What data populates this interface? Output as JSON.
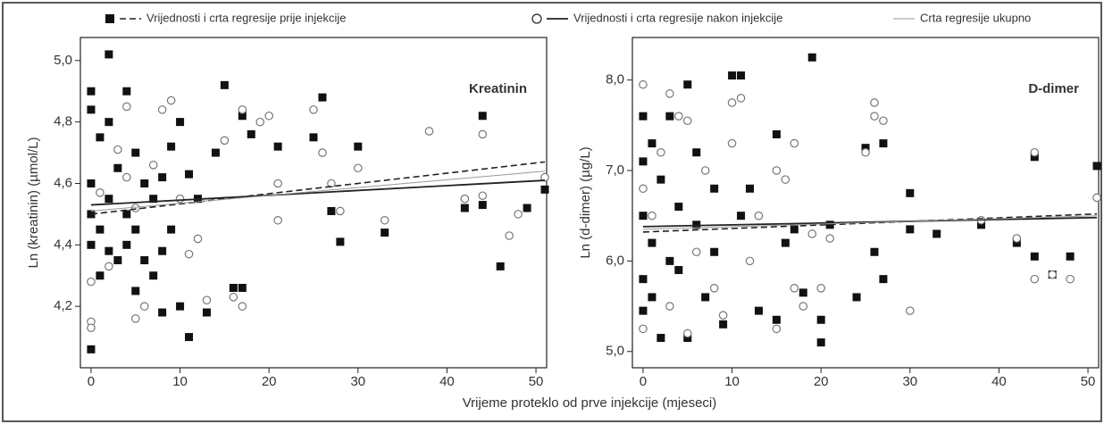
{
  "chart_data": [
    {
      "type": "scatter",
      "title": "Kreatinin",
      "ylabel": "Ln (kreatinin) (µmol/L)",
      "xlabel": "Vrijeme proteklo od prve injekcije (mjeseci)",
      "xlim": [
        -1.2,
        51.2
      ],
      "xticks": [
        0,
        10,
        20,
        30,
        40,
        50
      ],
      "ylim": [
        4.0,
        5.075
      ],
      "yticks": [
        {
          "value": 4.2,
          "label": "4,2"
        },
        {
          "value": 4.4,
          "label": "4,4"
        },
        {
          "value": 4.6,
          "label": "4,6"
        },
        {
          "value": 4.8,
          "label": "4,8"
        },
        {
          "value": 5.0,
          "label": "5,0"
        }
      ],
      "series": [
        {
          "name": "Vrijednosti i crta regresije prije injekcije",
          "marker": "square",
          "color": "#111111",
          "dash": "dashed",
          "x": [
            0,
            0,
            0,
            0,
            0,
            0,
            1,
            1,
            1,
            2,
            2,
            2,
            2,
            3,
            3,
            4,
            4,
            4,
            5,
            5,
            5,
            6,
            6,
            7,
            7,
            8,
            8,
            8,
            9,
            9,
            10,
            10,
            11,
            11,
            12,
            13,
            14,
            15,
            16,
            17,
            17,
            18,
            21,
            25,
            26,
            27,
            28,
            30,
            33,
            42,
            44,
            44,
            46,
            49,
            51
          ],
          "values": [
            4.9,
            4.84,
            4.06,
            4.4,
            4.5,
            4.6,
            4.75,
            4.3,
            4.45,
            5.02,
            4.8,
            4.38,
            4.55,
            4.65,
            4.35,
            4.9,
            4.5,
            4.4,
            4.25,
            4.7,
            4.45,
            4.6,
            4.35,
            4.55,
            4.3,
            4.18,
            4.38,
            4.62,
            4.72,
            4.45,
            4.2,
            4.8,
            4.1,
            4.63,
            4.55,
            4.18,
            4.7,
            4.92,
            4.26,
            4.26,
            4.82,
            4.76,
            4.72,
            4.75,
            4.88,
            4.51,
            4.41,
            4.72,
            4.44,
            4.52,
            4.82,
            4.53,
            4.33,
            4.52,
            4.58
          ],
          "fit": {
            "x": [
              0,
              51
            ],
            "values": [
              4.5,
              4.67
            ]
          }
        },
        {
          "name": "Vrijednosti i crta regresije nakon injekcije",
          "marker": "circle",
          "color": "#777777",
          "dash": "solid",
          "x": [
            0,
            0,
            0,
            1,
            2,
            3,
            4,
            4,
            5,
            5,
            6,
            7,
            8,
            9,
            10,
            11,
            12,
            13,
            15,
            16,
            17,
            17,
            19,
            20,
            21,
            21,
            25,
            26,
            27,
            28,
            30,
            33,
            38,
            42,
            44,
            44,
            47,
            48,
            51
          ],
          "values": [
            4.15,
            4.13,
            4.28,
            4.57,
            4.33,
            4.71,
            4.85,
            4.62,
            4.16,
            4.52,
            4.2,
            4.66,
            4.84,
            4.87,
            4.55,
            4.37,
            4.42,
            4.22,
            4.74,
            4.23,
            4.2,
            4.84,
            4.8,
            4.82,
            4.48,
            4.6,
            4.84,
            4.7,
            4.6,
            4.51,
            4.65,
            4.48,
            4.77,
            4.55,
            4.76,
            4.56,
            4.43,
            4.5,
            4.62
          ],
          "fit": {
            "x": [
              0,
              51
            ],
            "values": [
              4.53,
              4.61
            ]
          }
        },
        {
          "name": "Crta regresije ukupno",
          "color": "#999999",
          "dash": "thin",
          "fit": {
            "x": [
              0,
              51
            ],
            "values": [
              4.51,
              4.64
            ]
          }
        }
      ]
    },
    {
      "type": "scatter",
      "title": "D-dimer",
      "ylabel": "Ln (d-dimer) (µg/L)",
      "xlim": [
        -1.2,
        51.2
      ],
      "xticks": [
        0,
        10,
        20,
        30,
        40,
        50
      ],
      "ylim": [
        4.82,
        8.47
      ],
      "yticks": [
        {
          "value": 5,
          "label": "5,0"
        },
        {
          "value": 6,
          "label": "6,0"
        },
        {
          "value": 7,
          "label": "7,0"
        },
        {
          "value": 8,
          "label": "8,0"
        }
      ],
      "series": [
        {
          "marker": "square",
          "color": "#111111",
          "dash": "dashed",
          "x": [
            0,
            0,
            0,
            0,
            0,
            1,
            1,
            1,
            2,
            2,
            3,
            3,
            4,
            4,
            5,
            5,
            6,
            6,
            7,
            8,
            8,
            9,
            10,
            11,
            11,
            12,
            13,
            15,
            15,
            16,
            17,
            18,
            19,
            20,
            20,
            21,
            24,
            25,
            26,
            27,
            27,
            30,
            30,
            33,
            38,
            42,
            44,
            44,
            46,
            48,
            51
          ],
          "values": [
            7.6,
            7.1,
            6.5,
            5.8,
            5.45,
            7.3,
            6.2,
            5.6,
            5.15,
            6.9,
            7.6,
            6.0,
            5.9,
            6.6,
            7.95,
            5.15,
            6.4,
            7.2,
            5.6,
            6.8,
            6.1,
            5.3,
            8.05,
            8.05,
            6.5,
            6.8,
            5.45,
            7.4,
            5.35,
            6.2,
            6.35,
            5.65,
            8.25,
            5.35,
            5.1,
            6.4,
            5.6,
            7.25,
            6.1,
            7.3,
            5.8,
            6.75,
            6.35,
            6.3,
            6.4,
            6.2,
            7.15,
            6.05,
            5.85,
            6.05,
            7.05
          ],
          "fit": {
            "x": [
              0,
              51
            ],
            "values": [
              6.32,
              6.52
            ]
          }
        },
        {
          "marker": "circle",
          "color": "#777777",
          "dash": "solid",
          "x": [
            0,
            0,
            0,
            1,
            2,
            3,
            3,
            4,
            5,
            5,
            6,
            7,
            8,
            9,
            10,
            10,
            11,
            12,
            13,
            15,
            15,
            16,
            17,
            17,
            18,
            19,
            20,
            21,
            25,
            26,
            26,
            27,
            30,
            38,
            42,
            44,
            44,
            46,
            48,
            51
          ],
          "values": [
            7.95,
            5.25,
            6.8,
            6.5,
            7.2,
            7.85,
            5.5,
            7.6,
            7.55,
            5.2,
            6.1,
            7.0,
            5.7,
            5.4,
            7.3,
            7.75,
            7.8,
            6.0,
            6.5,
            7.0,
            5.25,
            6.9,
            7.3,
            5.7,
            5.5,
            6.3,
            5.7,
            6.25,
            7.2,
            7.75,
            7.6,
            7.55,
            5.45,
            6.45,
            6.25,
            7.2,
            5.8,
            5.85,
            5.8,
            6.7
          ],
          "fit": {
            "x": [
              0,
              51
            ],
            "values": [
              6.38,
              6.48
            ]
          }
        },
        {
          "color": "#999999",
          "dash": "thin",
          "fit": {
            "x": [
              0,
              51
            ],
            "values": [
              6.35,
              6.5
            ]
          }
        }
      ]
    }
  ]
}
